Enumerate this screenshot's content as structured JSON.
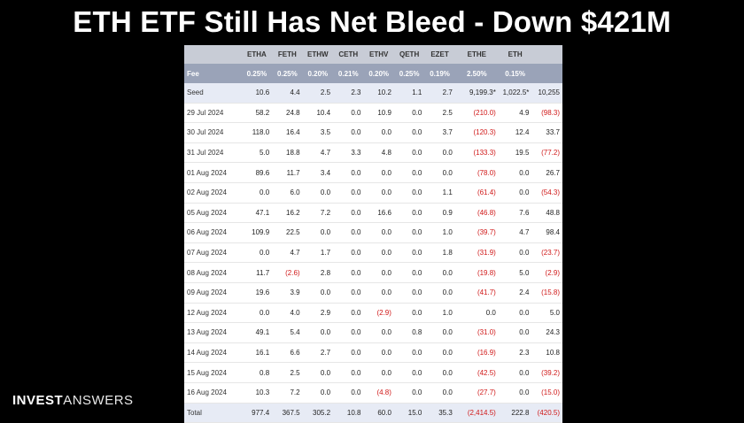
{
  "title": "ETH ETF Still Has Net Bleed - Down $421M",
  "logo": {
    "bold": "INVEST",
    "light": "ANSWERS"
  },
  "table": {
    "columns": [
      "",
      "ETHA",
      "FETH",
      "ETHW",
      "CETH",
      "ETHV",
      "QETH",
      "EZET",
      "ETHE",
      "ETH",
      ""
    ],
    "fee": [
      "Fee",
      "0.25%",
      "0.25%",
      "0.20%",
      "0.21%",
      "0.20%",
      "0.25%",
      "0.19%",
      "2.50%",
      "0.15%",
      ""
    ],
    "rows": [
      [
        "Seed",
        "10.6",
        "4.4",
        "2.5",
        "2.3",
        "10.2",
        "1.1",
        "2.7",
        "9,199.3*",
        "1,022.5*",
        "10,255"
      ],
      [
        "29 Jul 2024",
        "58.2",
        "24.8",
        "10.4",
        "0.0",
        "10.9",
        "0.0",
        "2.5",
        "(210.0)",
        "4.9",
        "(98.3)"
      ],
      [
        "30 Jul 2024",
        "118.0",
        "16.4",
        "3.5",
        "0.0",
        "0.0",
        "0.0",
        "3.7",
        "(120.3)",
        "12.4",
        "33.7"
      ],
      [
        "31 Jul 2024",
        "5.0",
        "18.8",
        "4.7",
        "3.3",
        "4.8",
        "0.0",
        "0.0",
        "(133.3)",
        "19.5",
        "(77.2)"
      ],
      [
        "01 Aug 2024",
        "89.6",
        "11.7",
        "3.4",
        "0.0",
        "0.0",
        "0.0",
        "0.0",
        "(78.0)",
        "0.0",
        "26.7"
      ],
      [
        "02 Aug 2024",
        "0.0",
        "6.0",
        "0.0",
        "0.0",
        "0.0",
        "0.0",
        "1.1",
        "(61.4)",
        "0.0",
        "(54.3)"
      ],
      [
        "05 Aug 2024",
        "47.1",
        "16.2",
        "7.2",
        "0.0",
        "16.6",
        "0.0",
        "0.9",
        "(46.8)",
        "7.6",
        "48.8"
      ],
      [
        "06 Aug 2024",
        "109.9",
        "22.5",
        "0.0",
        "0.0",
        "0.0",
        "0.0",
        "1.0",
        "(39.7)",
        "4.7",
        "98.4"
      ],
      [
        "07 Aug 2024",
        "0.0",
        "4.7",
        "1.7",
        "0.0",
        "0.0",
        "0.0",
        "1.8",
        "(31.9)",
        "0.0",
        "(23.7)"
      ],
      [
        "08 Aug 2024",
        "11.7",
        "(2.6)",
        "2.8",
        "0.0",
        "0.0",
        "0.0",
        "0.0",
        "(19.8)",
        "5.0",
        "(2.9)"
      ],
      [
        "09 Aug 2024",
        "19.6",
        "3.9",
        "0.0",
        "0.0",
        "0.0",
        "0.0",
        "0.0",
        "(41.7)",
        "2.4",
        "(15.8)"
      ],
      [
        "12 Aug 2024",
        "0.0",
        "4.0",
        "2.9",
        "0.0",
        "(2.9)",
        "0.0",
        "1.0",
        "0.0",
        "0.0",
        "5.0"
      ],
      [
        "13 Aug 2024",
        "49.1",
        "5.4",
        "0.0",
        "0.0",
        "0.0",
        "0.8",
        "0.0",
        "(31.0)",
        "0.0",
        "24.3"
      ],
      [
        "14 Aug 2024",
        "16.1",
        "6.6",
        "2.7",
        "0.0",
        "0.0",
        "0.0",
        "0.0",
        "(16.9)",
        "2.3",
        "10.8"
      ],
      [
        "15 Aug 2024",
        "0.8",
        "2.5",
        "0.0",
        "0.0",
        "0.0",
        "0.0",
        "0.0",
        "(42.5)",
        "0.0",
        "(39.2)"
      ],
      [
        "16 Aug 2024",
        "10.3",
        "7.2",
        "0.0",
        "0.0",
        "(4.8)",
        "0.0",
        "0.0",
        "(27.7)",
        "0.0",
        "(15.0)"
      ],
      [
        "Total",
        "977.4",
        "367.5",
        "305.2",
        "10.8",
        "60.0",
        "15.0",
        "35.3",
        "(2,414.5)",
        "222.8",
        "(420.5)"
      ]
    ]
  }
}
